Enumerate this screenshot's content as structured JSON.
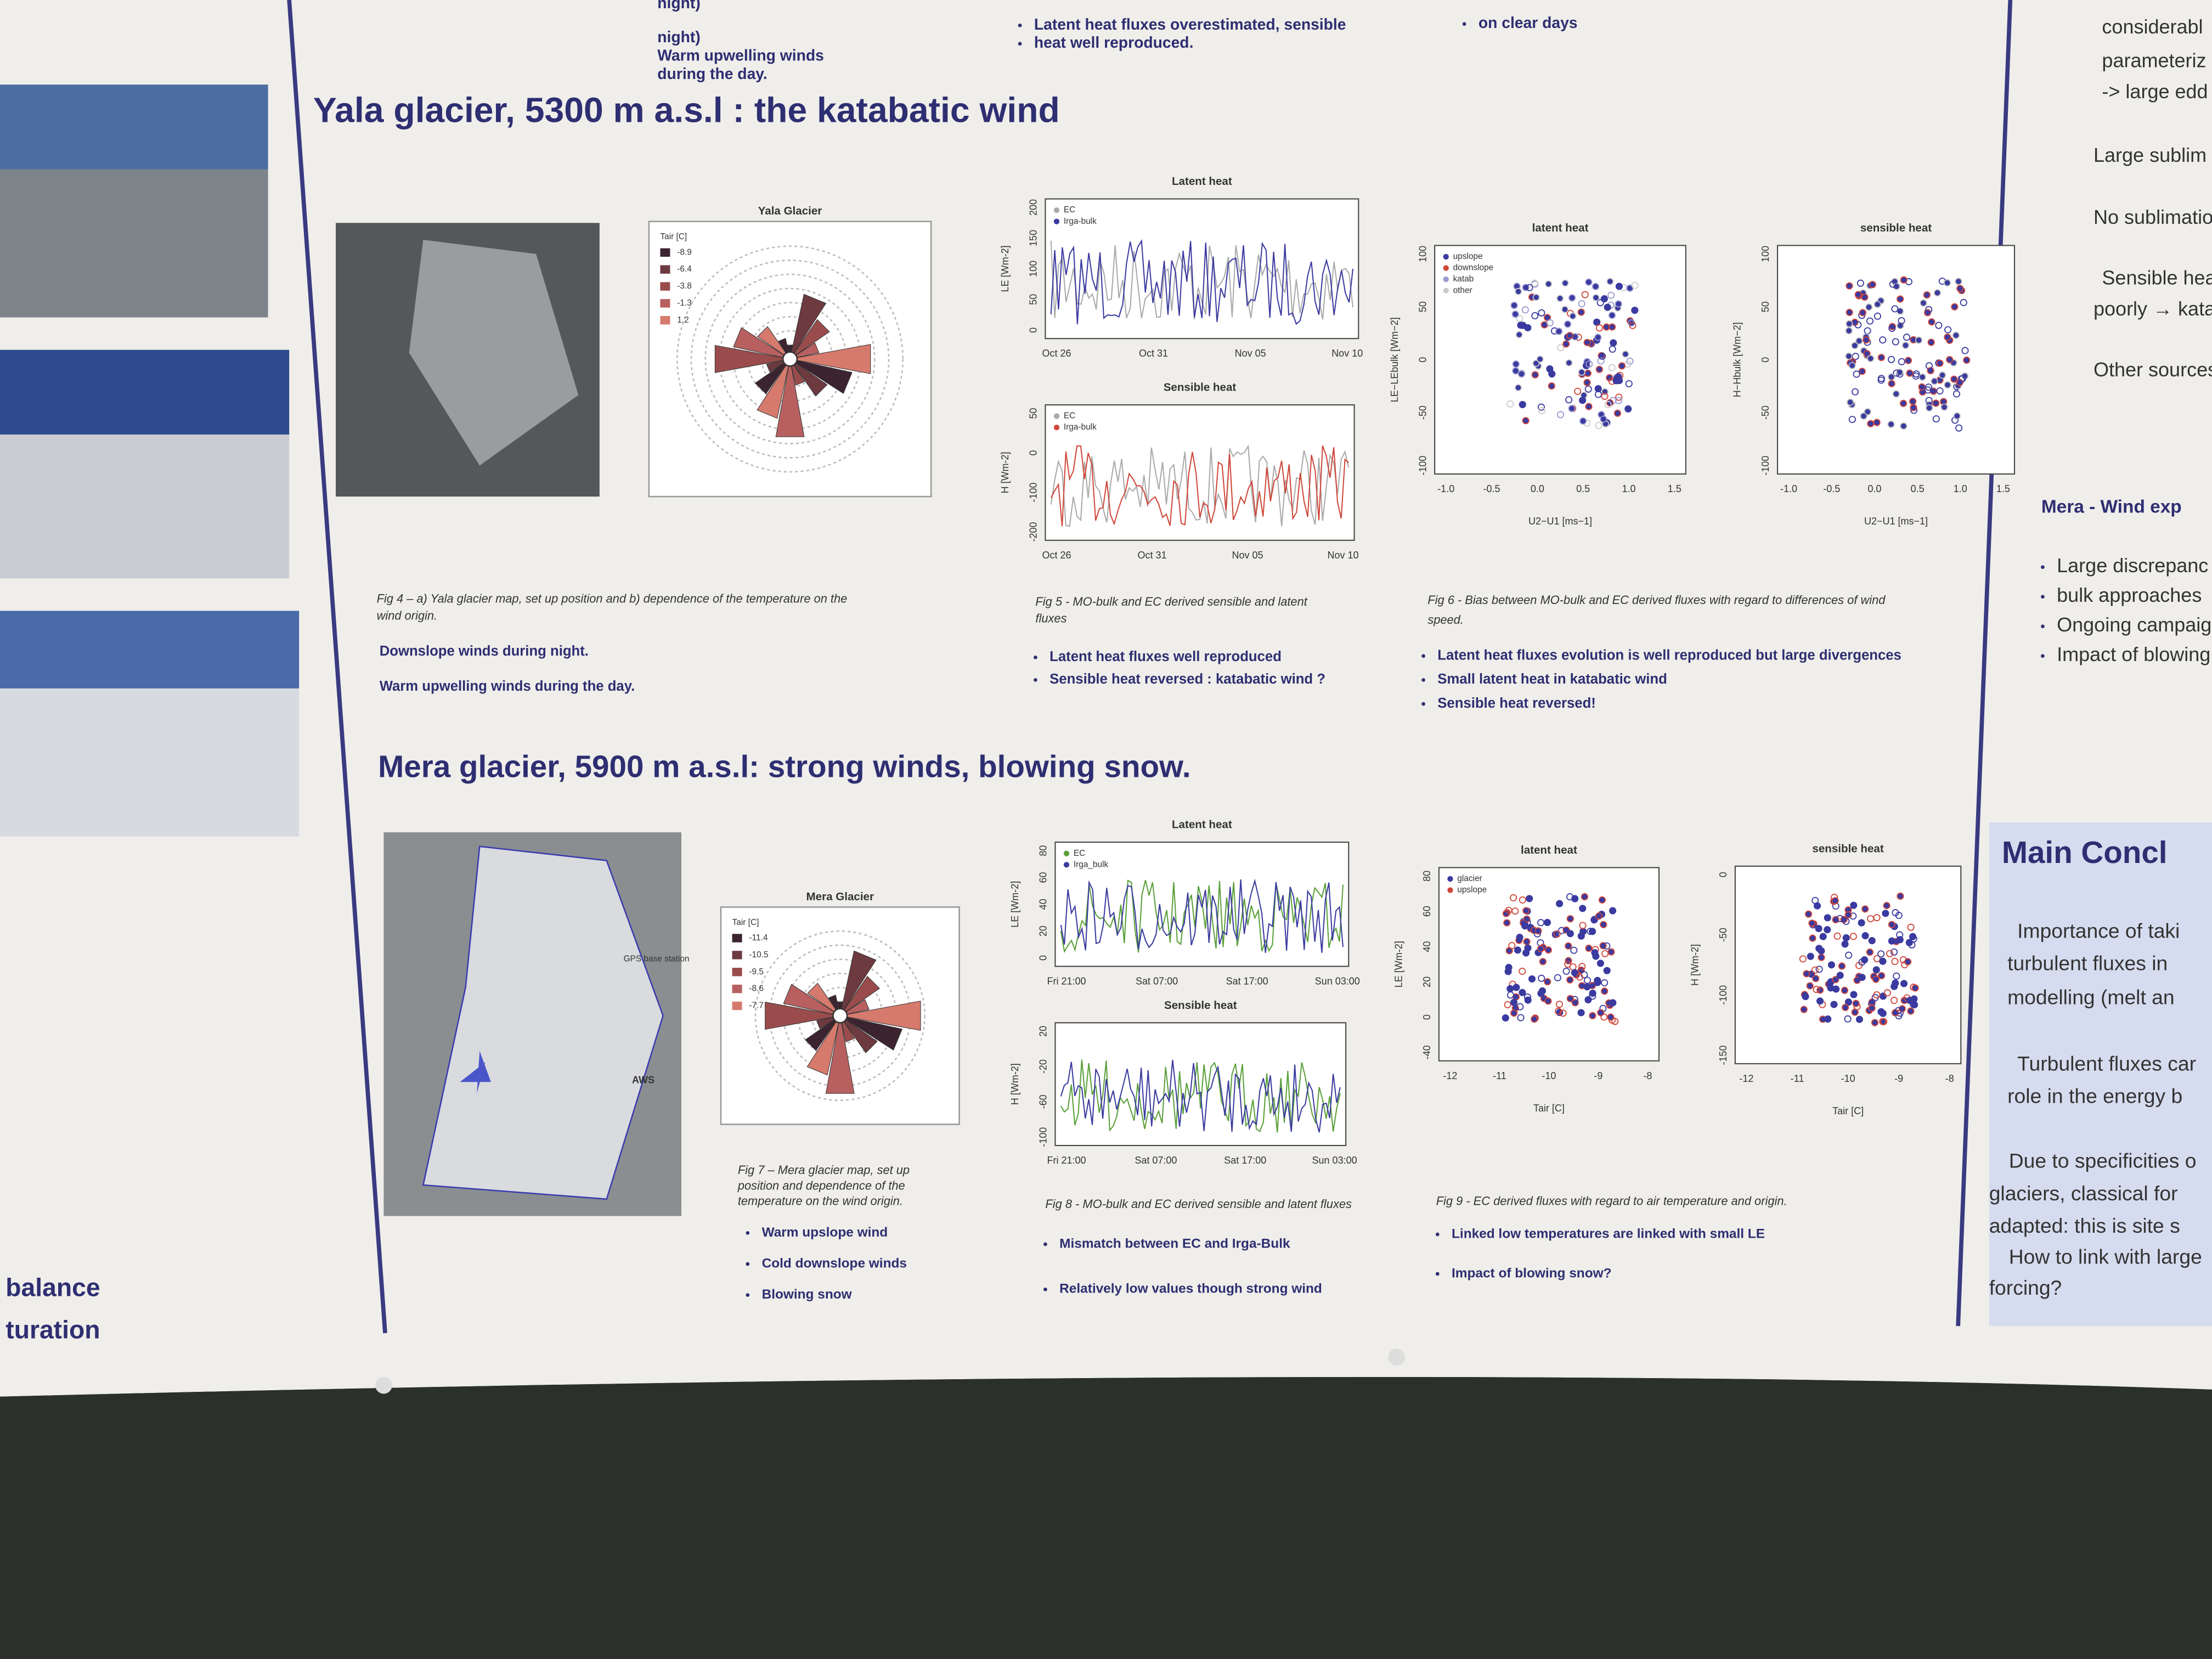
{
  "top_strip": {
    "col1": [
      "night)",
      "Warm upwelling winds",
      "during the day."
    ],
    "col2": [
      "Latent heat fluxes overestimated, sensible",
      "heat well reproduced."
    ],
    "col3": [
      "on clear days"
    ]
  },
  "left_column": {
    "lines": [
      "balance",
      "turation"
    ]
  },
  "yala": {
    "heading": "Yala glacier, 5300 m a.s.l : the katabatic wind",
    "fig4": {
      "map_title": "Yala Glacier",
      "legend_title": "Tair [C]",
      "legend": [
        "-8.9",
        "-6.4",
        "-3.8",
        "-1.3",
        "1.2"
      ],
      "caption": [
        "Fig 4 – a) Yala glacier map, set up position and b) dependence of the temperature on the",
        "wind origin."
      ],
      "bullets": [
        "Downslope winds during night.",
        "Warm upwelling winds during the day."
      ]
    },
    "fig5": {
      "latent": {
        "title": "Latent heat",
        "ylabel": "LE [Wm-2]",
        "yticks": [
          "0",
          "50",
          "100",
          "150",
          "200"
        ],
        "xticks": [
          "Oct 26",
          "Oct 31",
          "Nov 05",
          "Nov 10"
        ],
        "legend": [
          "EC",
          "Irga-bulk"
        ]
      },
      "sensible": {
        "title": "Sensible heat",
        "ylabel": "H [Wm-2]",
        "yticks": [
          "-200",
          "-100",
          "0",
          "50"
        ],
        "xticks": [
          "Oct 26",
          "Oct 31",
          "Nov 05",
          "Nov 10"
        ],
        "legend": [
          "EC",
          "Irga-bulk"
        ]
      },
      "caption": [
        "Fig 5 - MO-bulk and EC derived sensible and latent",
        "fluxes"
      ],
      "bullets": [
        "Latent heat fluxes well reproduced",
        "Sensible heat reversed : katabatic wind ?"
      ]
    },
    "fig6": {
      "latent": {
        "title": "latent heat",
        "ylabel": "LE−LEbulk [Wm−2]",
        "xlabel": "U2−U1 [ms−1]",
        "yticks": [
          "-100",
          "-50",
          "0",
          "50",
          "100"
        ],
        "xticks": [
          "-1.0",
          "-0.5",
          "0.0",
          "0.5",
          "1.0",
          "1.5"
        ],
        "legend": [
          "upslope",
          "downslope",
          "katab",
          "other"
        ]
      },
      "sensible": {
        "title": "sensible heat",
        "ylabel": "H−Hbulk [Wm−2]",
        "xlabel": "U2−U1 [ms−1]",
        "yticks": [
          "-100",
          "-50",
          "0",
          "50",
          "100"
        ],
        "xticks": [
          "-1.0",
          "-0.5",
          "0.0",
          "0.5",
          "1.0",
          "1.5"
        ]
      },
      "caption": [
        "Fig 6 - Bias between MO-bulk and EC derived fluxes with regard to differences of wind",
        "speed."
      ],
      "bullets": [
        "Latent heat fluxes evolution is well reproduced but large divergences",
        "Small latent heat in katabatic wind",
        "Sensible heat reversed!"
      ]
    }
  },
  "mera": {
    "heading": "Mera glacier, 5900 m a.s.l: strong winds, blowing snow.",
    "fig7": {
      "map_labels": [
        "GPS base station",
        "AWS"
      ],
      "map_title": "Mera Glacier",
      "legend_title": "Tair [C]",
      "legend": [
        "-11.4",
        "-10.5",
        "-9.5",
        "-8.6",
        "-7.7"
      ],
      "caption": [
        "Fig 7 – Mera glacier map, set up",
        "position and dependence of the",
        "temperature on the wind origin."
      ],
      "bullets": [
        "Warm upslope wind",
        "Cold downslope winds",
        "Blowing snow"
      ]
    },
    "fig8": {
      "latent": {
        "title": "Latent heat",
        "ylabel": "LE [Wm-2]",
        "yticks": [
          "0",
          "20",
          "40",
          "60",
          "80"
        ],
        "xticks": [
          "Fri 21:00",
          "Sat 07:00",
          "Sat 17:00",
          "Sun 03:00"
        ],
        "legend": [
          "EC",
          "Irga_bulk"
        ]
      },
      "sensible": {
        "title": "Sensible heat",
        "ylabel": "H [Wm-2]",
        "yticks": [
          "-100",
          "-60",
          "-20",
          "20"
        ],
        "xticks": [
          "Fri 21:00",
          "Sat 07:00",
          "Sat 17:00",
          "Sun 03:00"
        ]
      },
      "caption": [
        "Fig 8 - MO-bulk and EC derived sensible and latent fluxes"
      ],
      "bullets": [
        "Mismatch between EC and Irga-Bulk",
        "Relatively low values though strong wind"
      ]
    },
    "fig9": {
      "latent": {
        "title": "latent heat",
        "ylabel": "LE [Wm-2]",
        "xlabel": "Tair [C]",
        "yticks": [
          "-40",
          "0",
          "20",
          "40",
          "60",
          "80"
        ],
        "xticks": [
          "-12",
          "-11",
          "-10",
          "-9",
          "-8"
        ],
        "legend": [
          "glacier",
          "upslope"
        ]
      },
      "sensible": {
        "title": "sensible heat",
        "ylabel": "H [Wm-2]",
        "xlabel": "Tair [C]",
        "yticks": [
          "-150",
          "-100",
          "-50",
          "0"
        ],
        "xticks": [
          "-12",
          "-11",
          "-10",
          "-9",
          "-8"
        ]
      },
      "caption": [
        "Fig 9 - EC derived fluxes with regard to air temperature and origin."
      ],
      "bullets": [
        "Linked low temperatures are linked with small LE",
        "Impact of blowing snow?"
      ]
    }
  },
  "right_column": {
    "lines": [
      "considerabl",
      "parameteriz",
      "-> large edd",
      "Large sublim",
      "No sublimatio",
      "Sensible heat",
      "poorly → katab",
      "Other sources"
    ],
    "mera_heading": "Mera -  Wind exp",
    "mera_lines": [
      "Large discrepanc",
      "bulk approaches",
      "Ongoing campaig",
      "Impact of blowing"
    ],
    "conclusions": {
      "title": "Main Concl",
      "lines": [
        "Importance of taki",
        "turbulent fluxes in",
        "modelling (melt an",
        "Turbulent fluxes car",
        "role in the energy b",
        "Due to specificities o",
        "glaciers, classical for",
        "adapted: this is site s",
        "How to link with large",
        "forcing?"
      ]
    }
  }
}
